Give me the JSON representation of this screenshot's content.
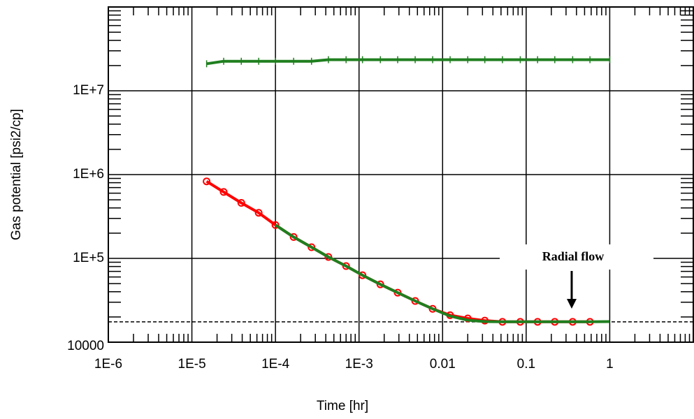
{
  "chart_data": {
    "type": "line",
    "x_label": "Time [hr]",
    "y_label": "Gas potential [psi2/cp]",
    "log_x": true,
    "log_y": true,
    "grid": true,
    "xlim": [
      1e-06,
      10
    ],
    "ylim": [
      10000,
      100000000
    ],
    "xticks": [
      {
        "value": 1e-06,
        "label": "1E-6"
      },
      {
        "value": 1e-05,
        "label": "1E-5"
      },
      {
        "value": 0.0001,
        "label": "1E-4"
      },
      {
        "value": 0.001,
        "label": "1E-3"
      },
      0.01,
      0.1,
      1
    ],
    "yticks": [
      10000,
      {
        "value": 100000,
        "label": "1E+5"
      },
      {
        "value": 1000000,
        "label": "1E+6"
      },
      {
        "value": 10000000,
        "label": "1E+7"
      }
    ],
    "reference_line": {
      "y": 17500,
      "color": "#000000"
    },
    "annotation": "Radial flow",
    "series": [
      {
        "color": "#ff0000",
        "marker": "circle",
        "x": [
          1.5e-05,
          2.4e-05,
          3.9e-05,
          6.3e-05,
          0.0001,
          0.000165,
          0.00027,
          0.00043,
          0.0007,
          0.0011,
          0.0018,
          0.0029,
          0.0047,
          0.0076,
          0.0123,
          0.02,
          0.032,
          0.052,
          0.085,
          0.137,
          0.22,
          0.36,
          0.58
        ],
        "values": [
          830000,
          620000,
          460000,
          350000,
          250000,
          180000,
          136000,
          104000,
          81000,
          63000,
          49000,
          39000,
          31000,
          25000,
          21000,
          19200,
          18100,
          17500,
          17500,
          17500,
          17500,
          17500,
          17500
        ]
      },
      {
        "color": "#1f7f1f",
        "marker": "none",
        "x": [
          0.0001,
          0.000165,
          0.00027,
          0.00043,
          0.0007,
          0.0011,
          0.0018,
          0.0029,
          0.0047,
          0.0076,
          0.0123,
          0.02,
          0.032,
          0.052,
          0.085,
          0.137,
          0.22,
          0.36,
          0.58,
          1
        ],
        "values": [
          250000,
          180000,
          136000,
          104000,
          81000,
          63000,
          49000,
          39000,
          31000,
          25000,
          20500,
          18300,
          17600,
          17500,
          17500,
          17500,
          17500,
          17500,
          17500,
          17600
        ]
      },
      {
        "color": "#1f7f1f",
        "marker": "tick",
        "x": [
          1.5e-05,
          2.4e-05,
          3.9e-05,
          6.3e-05,
          0.0001,
          0.000165,
          0.00027,
          0.00043,
          0.0007,
          0.0011,
          0.0018,
          0.0029,
          0.0047,
          0.0076,
          0.0123,
          0.02,
          0.032,
          0.052,
          0.085,
          0.137,
          0.22,
          0.36,
          0.58,
          1
        ],
        "values": [
          21000000,
          22500000,
          22500000,
          22500000,
          22500000,
          22500000,
          22500000,
          23500000,
          23500000,
          23500000,
          23500000,
          23500000,
          23500000,
          23500000,
          23500000,
          23500000,
          23500000,
          23500000,
          23500000,
          23500000,
          23500000,
          23500000,
          23500000,
          23500000
        ]
      }
    ]
  }
}
